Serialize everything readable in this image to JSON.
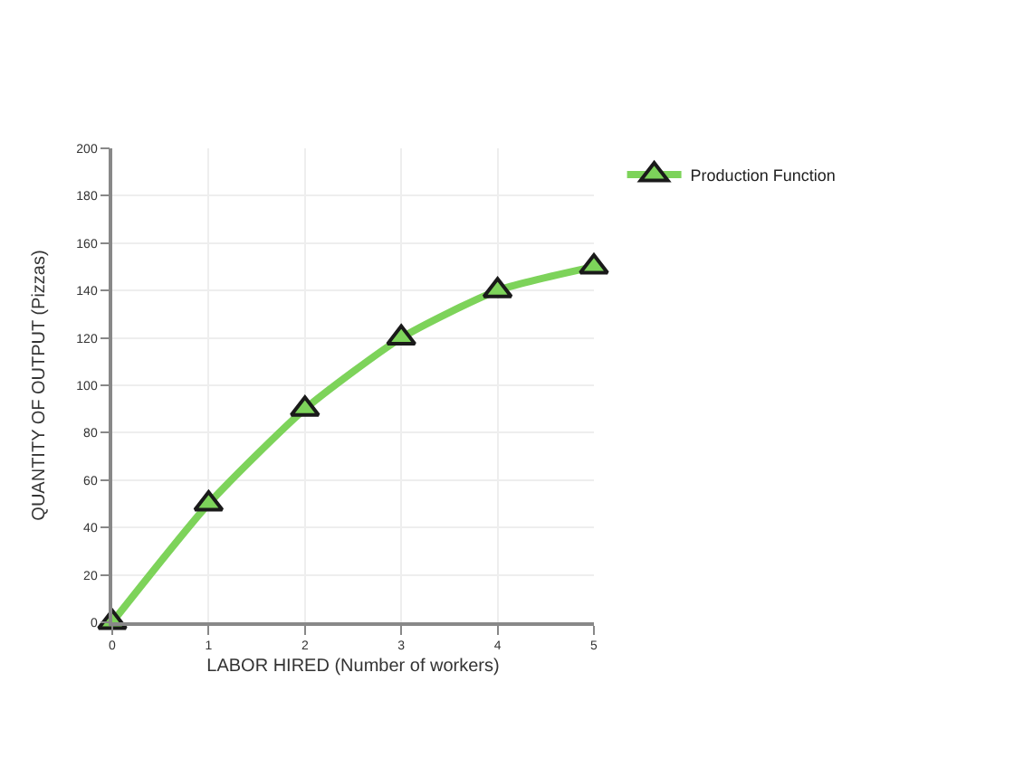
{
  "chart_data": {
    "type": "line",
    "xlabel": "LABOR HIRED (Number of workers)",
    "ylabel": "QUANTITY OF OUTPUT (Pizzas)",
    "x": [
      0,
      1,
      2,
      3,
      4,
      5
    ],
    "series": [
      {
        "name": "Production Function",
        "color": "#7dd35a",
        "values": [
          0,
          50,
          90,
          120,
          140,
          150
        ]
      }
    ],
    "xlim": [
      0,
      5
    ],
    "xticks": [
      0,
      1,
      2,
      3,
      4,
      5
    ],
    "ylim": [
      0,
      200
    ],
    "yticks": [
      0,
      20,
      40,
      60,
      80,
      100,
      120,
      140,
      160,
      180,
      200
    ],
    "grid": true,
    "legend": "top right",
    "marker": "triangle",
    "line_style": "solid"
  }
}
